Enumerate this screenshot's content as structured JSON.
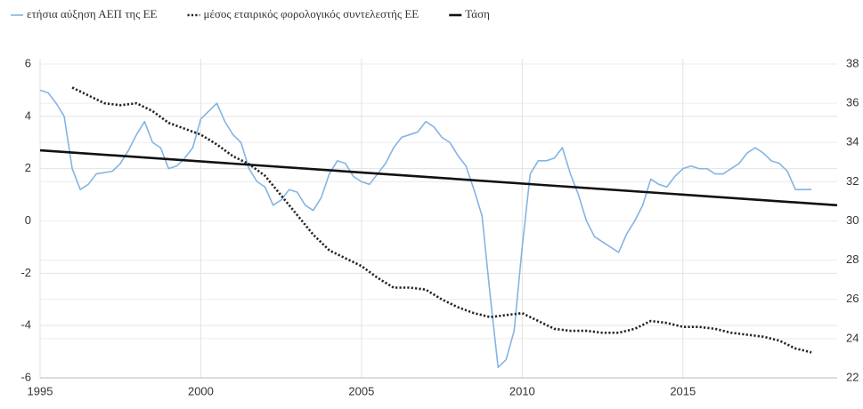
{
  "chart_data": {
    "type": "line",
    "xlim": [
      1995,
      2019.8
    ],
    "xticks": [
      1995,
      2000,
      2005,
      2010,
      2015
    ],
    "ylim": [
      -6,
      6
    ],
    "yticks": [
      -6,
      -4,
      -2,
      0,
      2,
      4,
      6
    ],
    "y2lim": [
      22,
      38
    ],
    "y2ticks": [
      22,
      24,
      26,
      28,
      30,
      32,
      34,
      36,
      38
    ],
    "grid": true,
    "legend": "top",
    "series": [
      {
        "name": "ετήσια αύξηση ΑΕΠ της ΕΕ",
        "color": "#84b4e4",
        "line_style": "solid",
        "x": [
          1995,
          1995.25,
          1995.5,
          1995.75,
          1996,
          1996.25,
          1996.5,
          1996.75,
          1997.25,
          1997.5,
          1997.75,
          1998,
          1998.25,
          1998.5,
          1998.75,
          1999,
          1999.25,
          1999.5,
          1999.75,
          2000,
          2000.25,
          2000.5,
          2000.75,
          2001,
          2001.25,
          2001.5,
          2001.75,
          2002,
          2002.25,
          2002.5,
          2002.75,
          2003,
          2003.25,
          2003.5,
          2003.75,
          2004,
          2004.25,
          2004.5,
          2004.75,
          2005,
          2005.25,
          2005.5,
          2005.75,
          2006,
          2006.25,
          2006.5,
          2006.75,
          2007,
          2007.25,
          2007.5,
          2007.75,
          2008,
          2008.25,
          2008.5,
          2008.75,
          2009,
          2009.25,
          2009.5,
          2009.75,
          2010,
          2010.25,
          2010.5,
          2010.75,
          2011,
          2011.25,
          2011.5,
          2011.75,
          2012,
          2012.25,
          2012.5,
          2012.75,
          2013,
          2013.25,
          2013.5,
          2013.75,
          2014,
          2014.25,
          2014.5,
          2014.75,
          2015,
          2015.25,
          2015.5,
          2015.75,
          2016,
          2016.25,
          2016.5,
          2016.75,
          2017,
          2017.25,
          2017.5,
          2017.75,
          2018,
          2018.25,
          2018.5,
          2018.75,
          2019
        ],
        "values": [
          5.0,
          4.9,
          4.5,
          4.0,
          2.0,
          1.2,
          1.4,
          1.8,
          1.9,
          2.2,
          2.7,
          3.3,
          3.8,
          3.0,
          2.8,
          2.0,
          2.1,
          2.4,
          2.8,
          3.9,
          4.2,
          4.5,
          3.8,
          3.3,
          3.0,
          2.0,
          1.5,
          1.3,
          0.6,
          0.8,
          1.2,
          1.1,
          0.6,
          0.4,
          0.9,
          1.8,
          2.3,
          2.2,
          1.7,
          1.5,
          1.4,
          1.8,
          2.2,
          2.8,
          3.2,
          3.3,
          3.4,
          3.8,
          3.6,
          3.2,
          3.0,
          2.5,
          2.1,
          1.2,
          0.2,
          -2.8,
          -5.6,
          -5.3,
          -4.2,
          -1.0,
          1.8,
          2.3,
          2.3,
          2.4,
          2.8,
          1.8,
          1.0,
          0.0,
          -0.6,
          -0.8,
          -1.0,
          -1.2,
          -0.5,
          0.0,
          0.6,
          1.6,
          1.4,
          1.3,
          1.7,
          2.0,
          2.1,
          2.0,
          2.0,
          1.8,
          1.8,
          2.0,
          2.2,
          2.6,
          2.8,
          2.6,
          2.3,
          2.2,
          1.9,
          1.2,
          1.2,
          1.2
        ]
      },
      {
        "name": "μέσος εταιρικός φορολογικός συντελεστής ΕΕ",
        "color": "#222222",
        "line_style": "dotted",
        "axis": "y2",
        "x": [
          1996,
          1996.5,
          1997,
          1997.5,
          1998,
          1998.5,
          1999,
          1999.5,
          2000,
          2000.5,
          2001,
          2001.5,
          2002,
          2002.5,
          2003,
          2003.5,
          2004,
          2004.5,
          2005,
          2005.5,
          2006,
          2006.5,
          2007,
          2007.5,
          2008,
          2008.5,
          2009,
          2009.5,
          2010,
          2010.5,
          2011,
          2011.5,
          2012,
          2012.5,
          2013,
          2013.5,
          2014,
          2014.5,
          2015,
          2015.5,
          2016,
          2016.5,
          2017,
          2017.5,
          2018,
          2018.5,
          2019
        ],
        "values": [
          36.8,
          36.4,
          36.0,
          35.9,
          36.0,
          35.6,
          35.0,
          34.7,
          34.4,
          33.9,
          33.3,
          32.9,
          32.3,
          31.3,
          30.3,
          29.3,
          28.5,
          28.1,
          27.7,
          27.1,
          26.6,
          26.6,
          26.5,
          26.0,
          25.6,
          25.3,
          25.1,
          25.2,
          25.3,
          24.9,
          24.5,
          24.4,
          24.4,
          24.3,
          24.3,
          24.5,
          24.9,
          24.8,
          24.6,
          24.6,
          24.5,
          24.3,
          24.2,
          24.1,
          23.9,
          23.5,
          23.3
        ]
      },
      {
        "name": "Τάση",
        "color": "#111111",
        "line_style": "thick",
        "x": [
          1995,
          2019.8
        ],
        "values": [
          2.7,
          0.6
        ]
      }
    ]
  }
}
